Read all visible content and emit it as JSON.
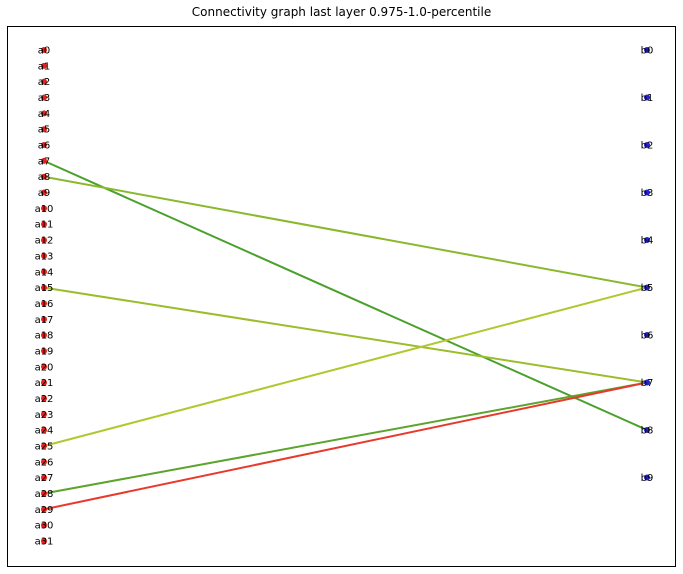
{
  "title": "Connectivity graph last layer 0.975-1.0-percentile",
  "colors": {
    "left_node": "#e8201a",
    "right_node": "#2424c8",
    "frame": "#000000"
  },
  "left_nodes": [
    "a0",
    "a1",
    "a2",
    "a3",
    "a4",
    "a5",
    "a6",
    "a7",
    "a8",
    "a9",
    "a10",
    "a11",
    "a12",
    "a13",
    "a14",
    "a15",
    "a16",
    "a17",
    "a18",
    "a19",
    "a20",
    "a21",
    "a22",
    "a23",
    "a24",
    "a25",
    "a26",
    "a27",
    "a28",
    "a29",
    "a30",
    "a31"
  ],
  "right_nodes": [
    "b0",
    "b1",
    "b2",
    "b3",
    "b4",
    "b5",
    "b6",
    "b7",
    "b8",
    "b9"
  ],
  "edges": [
    {
      "from": "a7",
      "to": "b8",
      "color": "#4aa02c"
    },
    {
      "from": "a8",
      "to": "b5",
      "color": "#8ab82c"
    },
    {
      "from": "a15",
      "to": "b7",
      "color": "#9cbc2c"
    },
    {
      "from": "a25",
      "to": "b5",
      "color": "#b0c830"
    },
    {
      "from": "a28",
      "to": "b7",
      "color": "#5ca42c"
    },
    {
      "from": "a29",
      "to": "b7",
      "color": "#e83a2c"
    }
  ]
}
